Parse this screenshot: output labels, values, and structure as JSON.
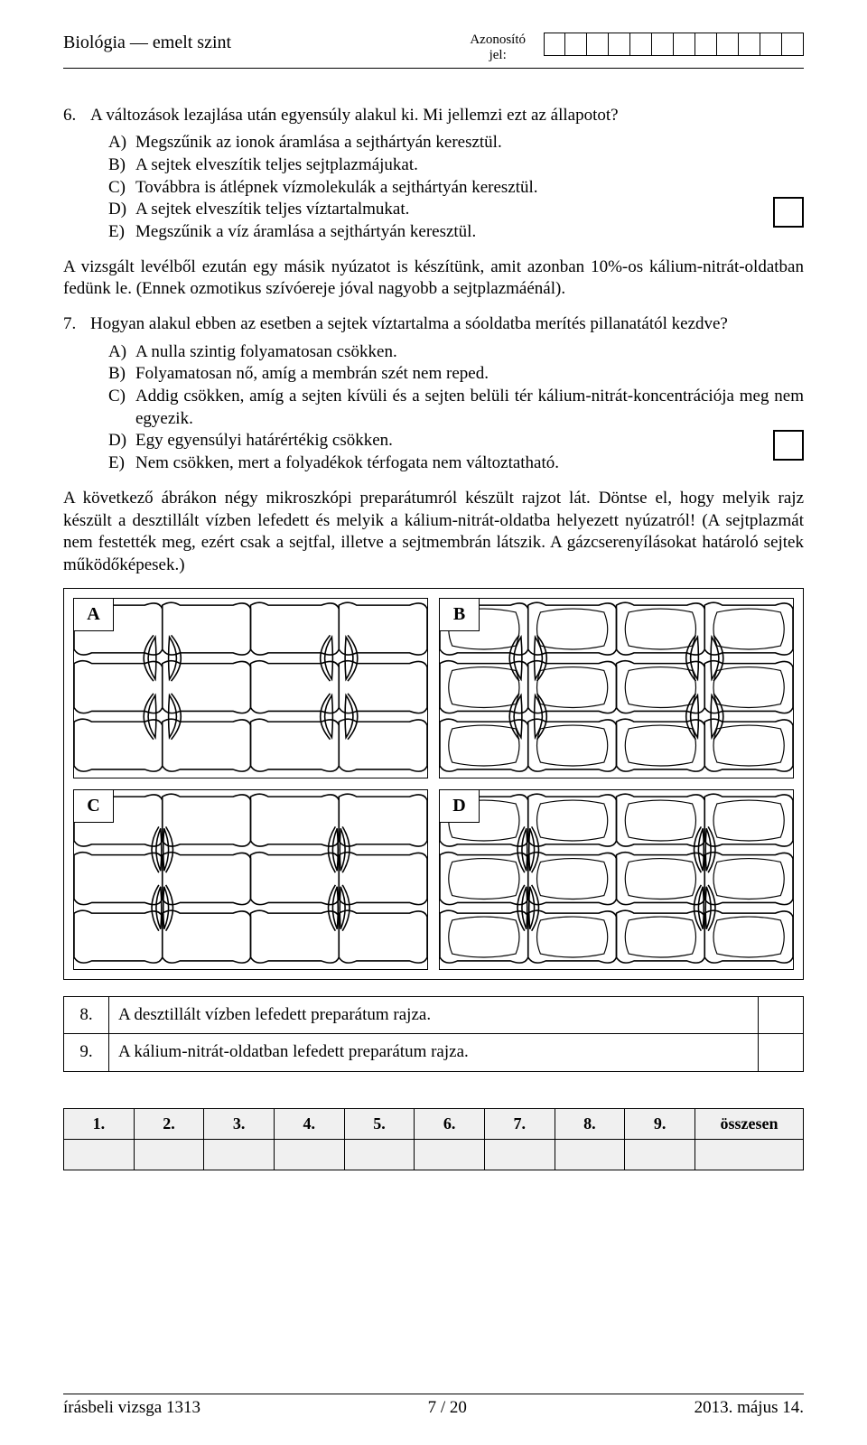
{
  "header": {
    "subject": "Biológia — emelt szint",
    "id_label1": "Azonosító",
    "id_label2": "jel:",
    "id_cells": 12
  },
  "q6": {
    "number": "6.",
    "text": "A változások lezajlása után egyensúly alakul ki. Mi jellemzi ezt az állapotot?",
    "opts": [
      {
        "l": "A)",
        "t": "Megszűnik az ionok áramlása a sejthártyán keresztül."
      },
      {
        "l": "B)",
        "t": "A sejtek elveszítik teljes sejtplazmájukat."
      },
      {
        "l": "C)",
        "t": "Továbbra is átlépnek vízmolekulák a sejthártyán keresztül."
      },
      {
        "l": "D)",
        "t": "A sejtek elveszítik teljes víztartalmukat."
      },
      {
        "l": "E)",
        "t": "Megszűnik a víz áramlása a sejthártyán keresztül."
      }
    ]
  },
  "mid_para": "A vizsgált levélből ezután egy másik nyúzatot is készítünk, amit azonban 10%-os kálium-nitrát-oldatban fedünk le. (Ennek ozmotikus szívóereje jóval nagyobb a sejtplazmáénál).",
  "q7": {
    "number": "7.",
    "text": "Hogyan alakul ebben az esetben a sejtek víztartalma a sóoldatba merítés pillanatától kezdve?",
    "opts": [
      {
        "l": "A)",
        "t": "A nulla szintig folyamatosan csökken."
      },
      {
        "l": "B)",
        "t": "Folyamatosan nő, amíg a membrán szét nem reped."
      },
      {
        "l": "C)",
        "t": "Addig csökken, amíg a sejten kívüli és a sejten belüli tér kálium-nitrát-koncentrációja meg nem egyezik."
      },
      {
        "l": "D)",
        "t": "Egy egyensúlyi határértékig csökken."
      },
      {
        "l": "E)",
        "t": "Nem csökken, mert a folyadékok térfogata nem változtatható."
      }
    ]
  },
  "diag_intro": "A következő ábrákon négy mikroszkópi preparátumról készült rajzot lát. Döntse el, hogy melyik rajz készült a desztillált vízben lefedett és melyik a kálium-nitrát-oldatba helyezett nyúzatról! (A sejtplazmát nem festették meg, ezért csak a sejtfal, illetve a sejtmembrán látszik. A gázcserenyílásokat határoló sejtek működőképesek.)",
  "diagrams": {
    "labels": [
      "A",
      "B",
      "C",
      "D"
    ]
  },
  "ans_rows": [
    {
      "n": "8.",
      "t": "A desztillált vízben lefedett preparátum rajza."
    },
    {
      "n": "9.",
      "t": "A kálium-nitrát-oldatban lefedett preparátum rajza."
    }
  ],
  "score": {
    "cols": [
      "1.",
      "2.",
      "3.",
      "4.",
      "5.",
      "6.",
      "7.",
      "8.",
      "9.",
      "összesen"
    ]
  },
  "footer": {
    "left": "írásbeli vizsga 1313",
    "mid": "7 / 20",
    "right": "2013. május 14."
  }
}
